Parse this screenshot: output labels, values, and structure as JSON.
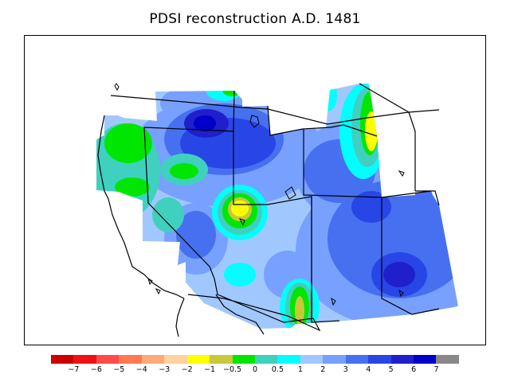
{
  "title": "PDSI reconstruction A.D. 1481",
  "legend": {
    "colors": [
      "#cc0000",
      "#ee1111",
      "#ff4a4a",
      "#ff7a50",
      "#ffaa78",
      "#ffd2a0",
      "#ffff00",
      "#c8c83a",
      "#00e600",
      "#40d0c0",
      "#00ffff",
      "#a0c8ff",
      "#78a0ff",
      "#4670f0",
      "#2846e6",
      "#1f1fcc",
      "#0000c8",
      "#888888"
    ],
    "tick_labels": [
      "−7",
      "−6",
      "−5",
      "−4",
      "−3",
      "−2",
      "−1",
      "−0.5",
      "0",
      "0.5",
      "1",
      "2",
      "3",
      "4",
      "5",
      "6",
      "7"
    ]
  }
}
